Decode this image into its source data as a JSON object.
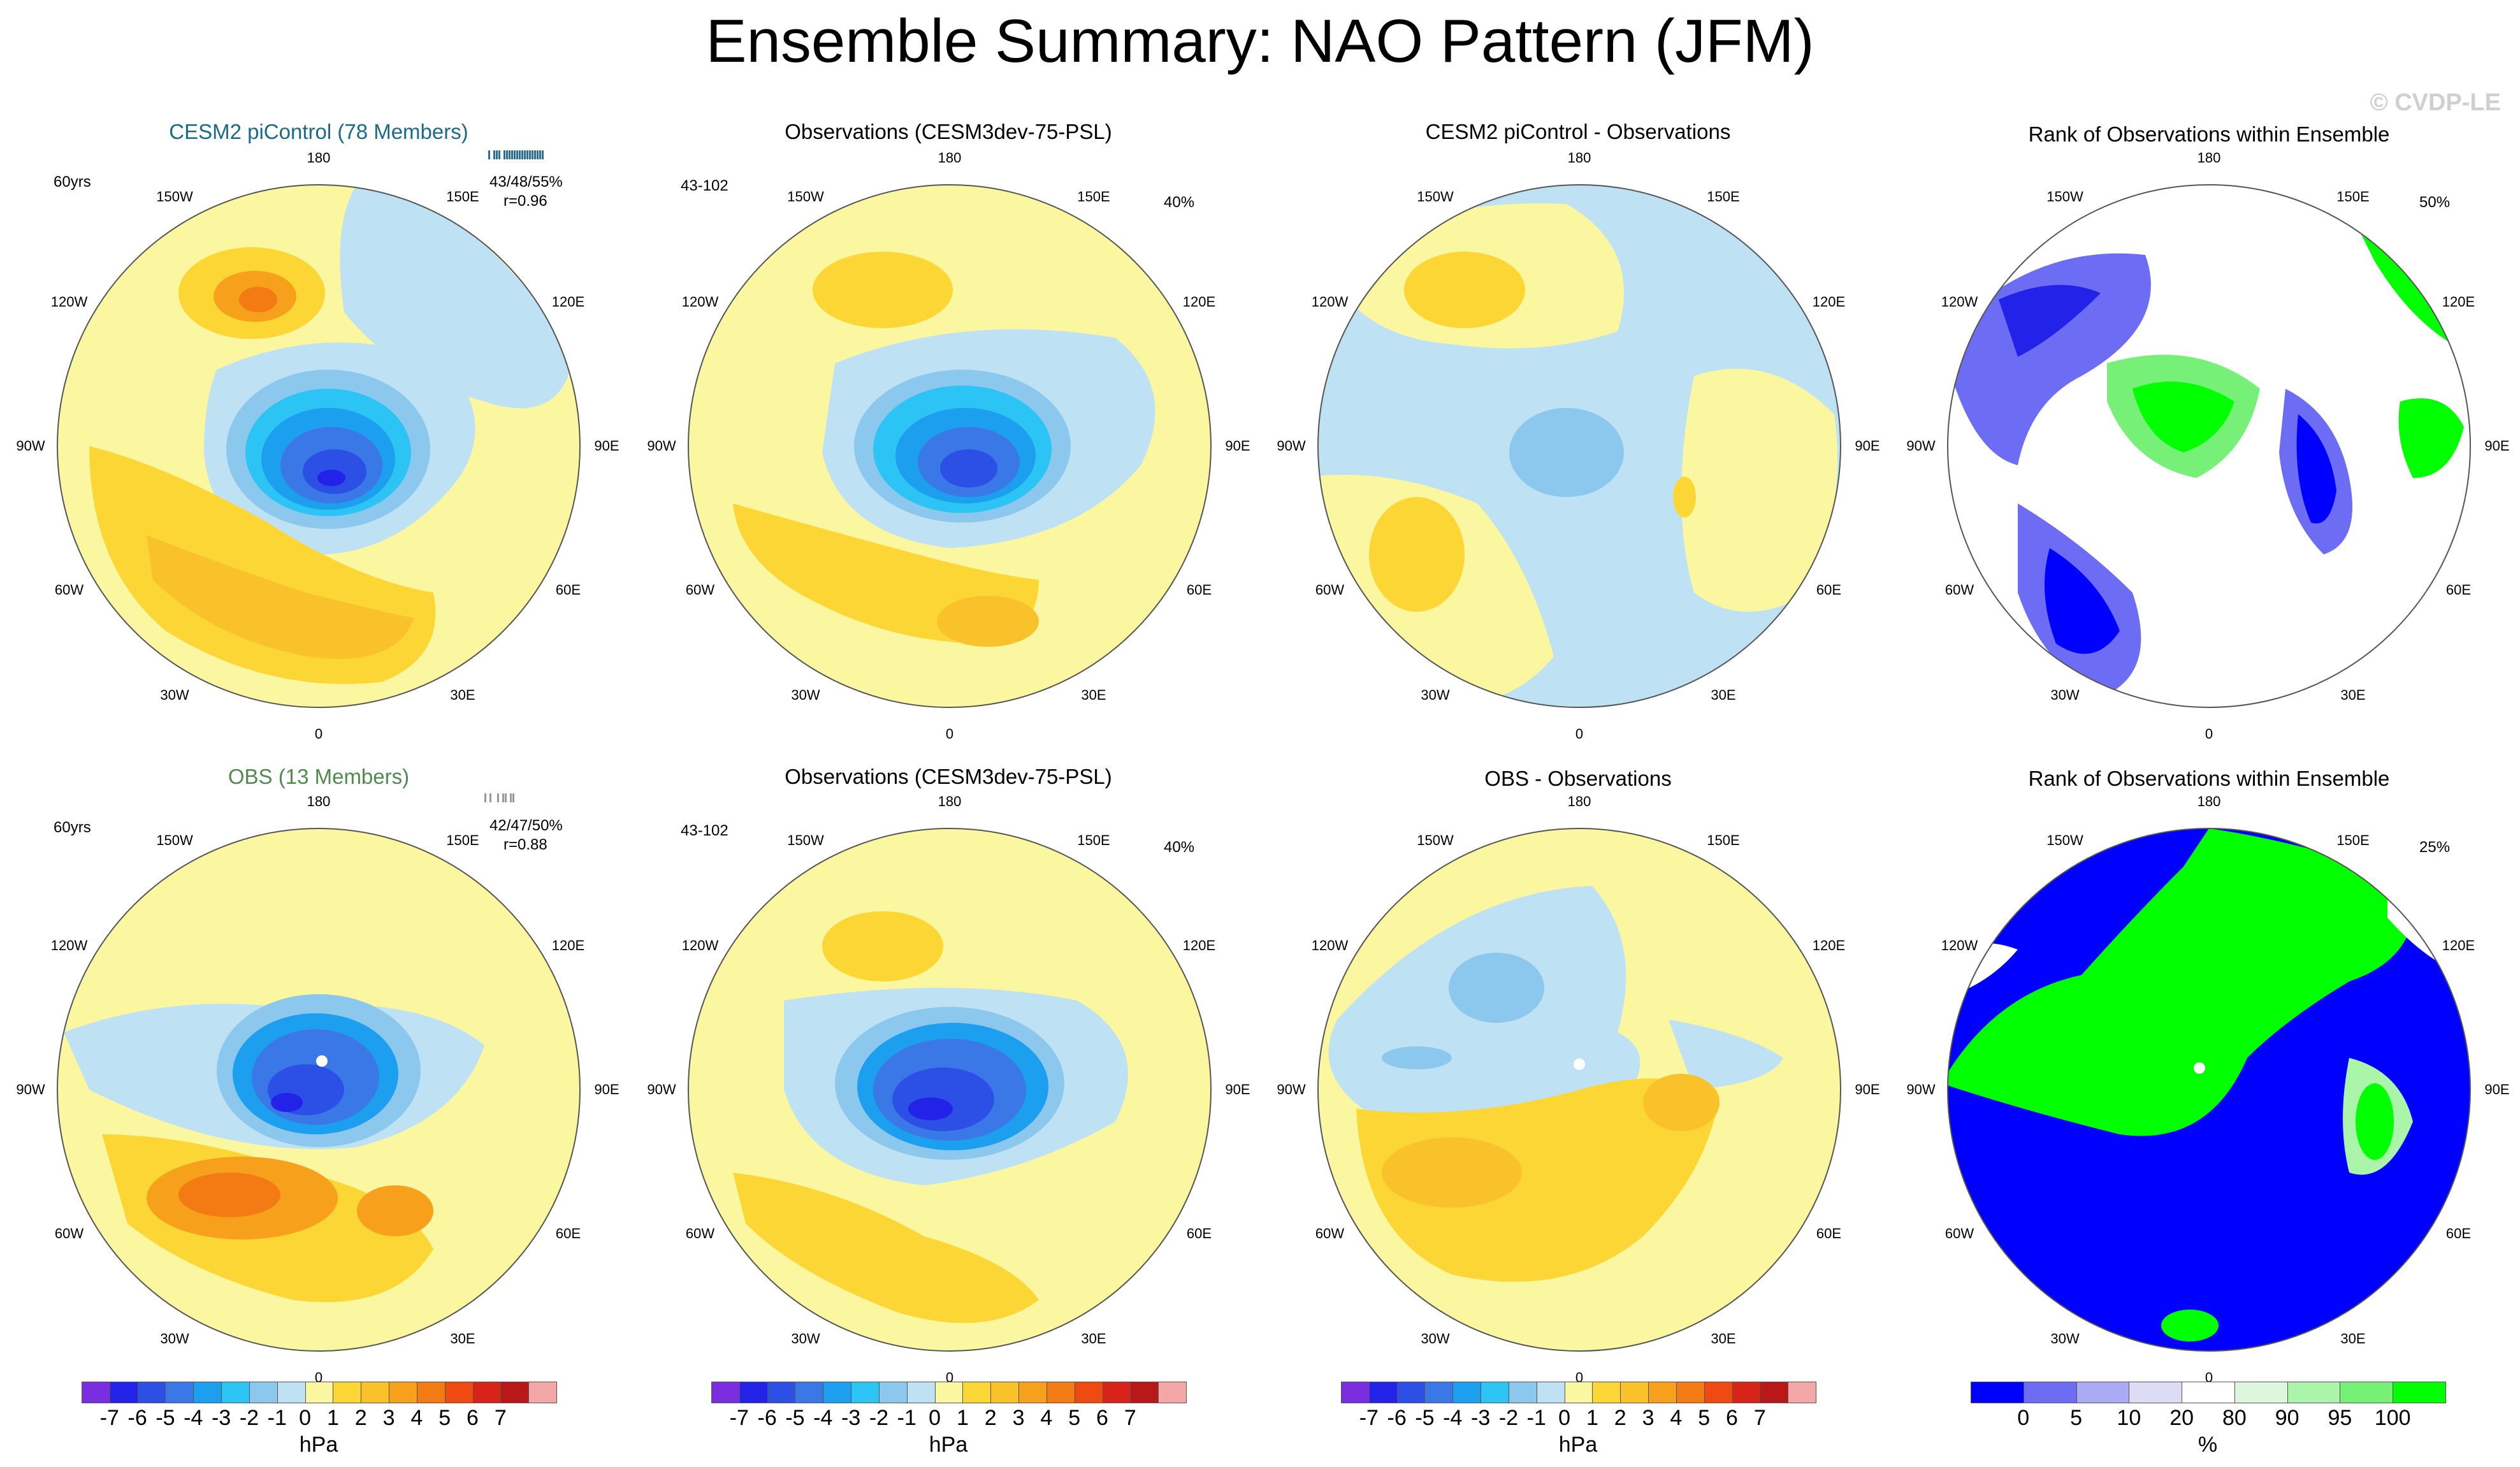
{
  "title": "Ensemble Summary: NAO Pattern (JFM)",
  "watermark": "© CVDP-LE",
  "colors": {
    "model_title": "#1a6b8a",
    "obs_title": "#4f8a4f"
  },
  "longitude_labels": [
    "180",
    "150E",
    "120E",
    "90E",
    "60E",
    "30E",
    "0",
    "30W",
    "60W",
    "90W",
    "120W",
    "150W"
  ],
  "rows": [
    {
      "panels": [
        {
          "title": "CESM2 piControl (78 Members)",
          "left_label": "60yrs",
          "right_label": "43/48/55%",
          "corr_label": "r=0.96",
          "kind": "model"
        },
        {
          "title": "Observations (CESM3dev-75-PSL)",
          "left_label": "43-102",
          "right_label": "40%",
          "kind": "obs"
        },
        {
          "title": "CESM2 piControl - Observations",
          "kind": "diff"
        },
        {
          "title": "Rank of Observations within Ensemble",
          "right_label": "50%",
          "kind": "rank"
        }
      ]
    },
    {
      "panels": [
        {
          "title": "OBS (13 Members)",
          "left_label": "60yrs",
          "right_label": "42/47/50%",
          "corr_label": "r=0.88",
          "kind": "model"
        },
        {
          "title": "Observations (CESM3dev-75-PSL)",
          "left_label": "43-102",
          "right_label": "40%",
          "kind": "obs"
        },
        {
          "title": "OBS - Observations",
          "kind": "diff"
        },
        {
          "title": "Rank of Observations within Ensemble",
          "right_label": "25%",
          "kind": "rank"
        }
      ]
    }
  ],
  "psl_colorbar": {
    "colors": [
      "#7b2ee0",
      "#2222e8",
      "#2c4fe6",
      "#3a78e8",
      "#1d9ff0",
      "#2cc4f4",
      "#8cc8ee",
      "#bfe1f4",
      "#fbf7a0",
      "#fcd635",
      "#f9c22a",
      "#f6a01c",
      "#f47a14",
      "#ef4a12",
      "#d82418",
      "#b81818",
      "#f4a7a7"
    ],
    "ticks": [
      "-7",
      "-6",
      "-5",
      "-4",
      "-3",
      "-2",
      "-1",
      "0",
      "1",
      "2",
      "3",
      "4",
      "5",
      "6",
      "7"
    ],
    "unit": "hPa"
  },
  "rank_colorbar": {
    "colors": [
      "#0000ff",
      "#6c6cf5",
      "#aaaaf5",
      "#dcdcf7",
      "#ffffff",
      "#ddf7dd",
      "#aaf5aa",
      "#77f077",
      "#00ff00"
    ],
    "ticks": [
      "0",
      "5",
      "10",
      "20",
      "80",
      "90",
      "95",
      "100"
    ],
    "unit": "%"
  }
}
